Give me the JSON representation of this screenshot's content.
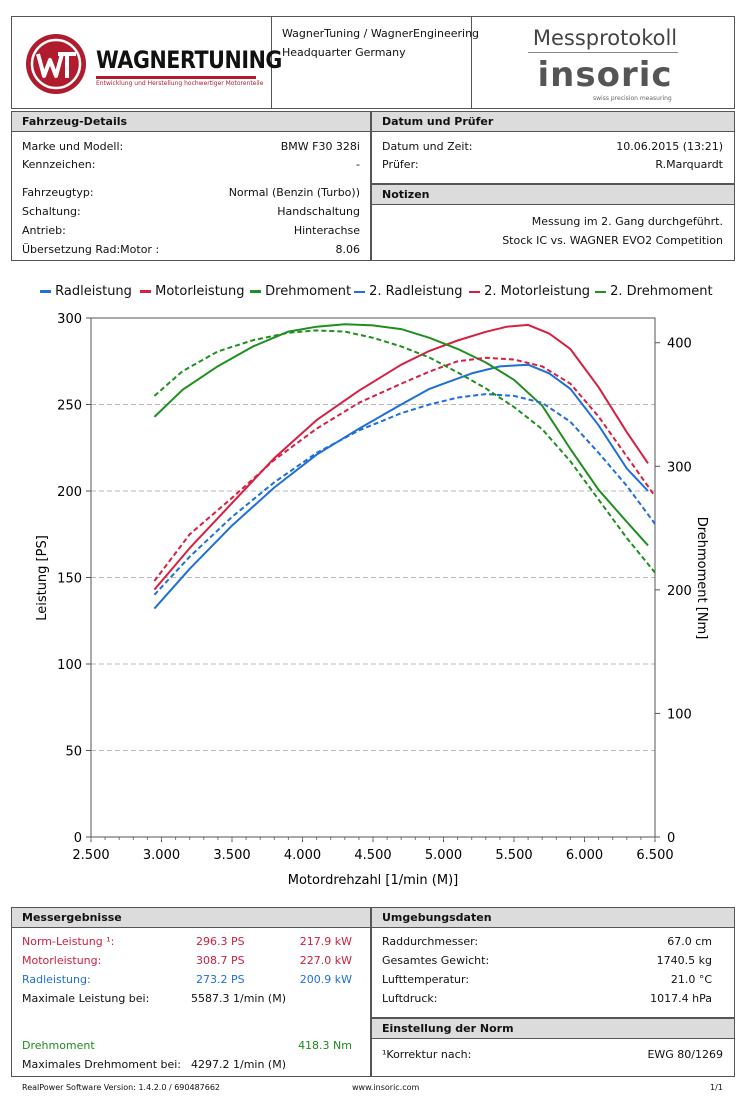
{
  "header": {
    "brand_name": "WAGNERTUNING",
    "brand_tagline": "Entwicklung und Herstellung hochwertiger Motorenteile",
    "company_line1": "WagnerTuning / WagnerEngineering",
    "company_line2": "Headquarter Germany",
    "doc_title": "Messprotokoll",
    "insoric_logo": "insoric",
    "insoric_tagline": "swiss precision measuring"
  },
  "vehicle": {
    "title": "Fahrzeug-Details",
    "rows": [
      {
        "label": "Marke und Modell:",
        "value": "BMW F30 328i"
      },
      {
        "label": "Kennzeichen:",
        "value": "-"
      },
      {
        "label": "Fahrzeugtyp:",
        "value": "Normal (Benzin (Turbo))"
      },
      {
        "label": "Schaltung:",
        "value": "Handschaltung"
      },
      {
        "label": "Antrieb:",
        "value": "Hinterachse"
      },
      {
        "label": "Übersetzung Rad:Motor :",
        "value": "8.06"
      }
    ]
  },
  "date": {
    "title": "Datum und Prüfer",
    "rows": [
      {
        "label": "Datum und Zeit:",
        "value": "10.06.2015 (13:21)"
      },
      {
        "label": "Prüfer:",
        "value": "R.Marquardt"
      }
    ]
  },
  "notes": {
    "title": "Notizen",
    "line1": "Messung im 2. Gang durchgeführt.",
    "line2": "Stock IC vs. WAGNER EVO2 Competition"
  },
  "chart_data": {
    "type": "line",
    "xlabel": "Motordrehzahl [1/min (M)]",
    "ylabel": "Leistung [PS]",
    "y2label": "Drehmoment [Nm]",
    "xlim": [
      2500,
      6500
    ],
    "ylim": [
      0,
      300
    ],
    "y2lim": [
      0,
      420
    ],
    "xticks": [
      "2.500",
      "3.000",
      "3.500",
      "4.000",
      "4.500",
      "5.000",
      "5.500",
      "6.000",
      "6.500"
    ],
    "yticks": [
      "0",
      "50",
      "100",
      "150",
      "200",
      "250",
      "300"
    ],
    "y2ticks": [
      "0",
      "100",
      "200",
      "300",
      "400"
    ],
    "legend_position": "top",
    "colors": {
      "blue": "#1e6fd8",
      "red": "#d62042",
      "green": "#1f8f1f"
    },
    "series": [
      {
        "name": "Radleistung",
        "axis": "left",
        "color": "#1e6fd8",
        "dash": false,
        "x": [
          2950,
          3200,
          3500,
          3800,
          4100,
          4400,
          4700,
          4900,
          5000,
          5200,
          5400,
          5600,
          5750,
          5900,
          6100,
          6300,
          6450
        ],
        "y": [
          132,
          155,
          180,
          202,
          221,
          236,
          250,
          259,
          262,
          268,
          272,
          273,
          268,
          259,
          238,
          213,
          200
        ]
      },
      {
        "name": "Motorleistung",
        "axis": "left",
        "color": "#d62042",
        "dash": false,
        "x": [
          2950,
          3200,
          3500,
          3800,
          4100,
          4400,
          4700,
          4900,
          5100,
          5300,
          5450,
          5600,
          5750,
          5900,
          6100,
          6300,
          6450
        ],
        "y": [
          143,
          167,
          193,
          219,
          241,
          258,
          273,
          281,
          287,
          292,
          295,
          296,
          291,
          282,
          260,
          234,
          216
        ]
      },
      {
        "name": "Drehmoment",
        "axis": "right",
        "color": "#1f8f1f",
        "dash": false,
        "x": [
          2950,
          3150,
          3400,
          3650,
          3900,
          4100,
          4300,
          4500,
          4700,
          4900,
          5100,
          5300,
          5500,
          5700,
          5900,
          6100,
          6300,
          6450
        ],
        "y": [
          340,
          362,
          381,
          397,
          409,
          413,
          415,
          414,
          411,
          404,
          395,
          384,
          370,
          349,
          314,
          281,
          255,
          236
        ]
      },
      {
        "name": "2. Radleistung",
        "axis": "left",
        "color": "#1e6fd8",
        "dash": true,
        "x": [
          2950,
          3200,
          3500,
          3800,
          4100,
          4400,
          4700,
          4900,
          5100,
          5300,
          5500,
          5700,
          5900,
          6100,
          6300,
          6500
        ],
        "y": [
          140,
          162,
          185,
          205,
          222,
          235,
          245,
          250,
          254,
          256,
          255,
          251,
          240,
          222,
          203,
          181
        ]
      },
      {
        "name": "2. Motorleistung",
        "axis": "left",
        "color": "#d62042",
        "dash": true,
        "x": [
          2950,
          3200,
          3500,
          3800,
          4100,
          4400,
          4700,
          4900,
          5100,
          5300,
          5500,
          5700,
          5900,
          6100,
          6300,
          6500
        ],
        "y": [
          148,
          175,
          196,
          218,
          236,
          251,
          262,
          269,
          275,
          277,
          276,
          272,
          262,
          243,
          220,
          197
        ]
      },
      {
        "name": "2. Drehmoment",
        "axis": "right",
        "color": "#1f8f1f",
        "dash": true,
        "x": [
          2950,
          3150,
          3400,
          3650,
          3900,
          4100,
          4300,
          4500,
          4700,
          4900,
          5100,
          5300,
          5500,
          5700,
          5900,
          6100,
          6300,
          6500
        ],
        "y": [
          357,
          377,
          393,
          402,
          408,
          410,
          409,
          404,
          397,
          388,
          376,
          363,
          348,
          330,
          304,
          273,
          242,
          214
        ]
      }
    ]
  },
  "results": {
    "title": "Messergebnisse",
    "norm_label": "Norm-Leistung ¹:",
    "norm_ps": "296.3 PS",
    "norm_kw": "217.9 kW",
    "motor_label": "Motorleistung:",
    "motor_ps": "308.7 PS",
    "motor_kw": "227.0 kW",
    "rad_label": "Radleistung:",
    "rad_ps": "273.2 PS",
    "rad_kw": "200.9 kW",
    "maxp_label": "Maximale Leistung bei:",
    "maxp_value": "5587.3 1/min (M)",
    "dm_label": "Drehmoment",
    "dm_value": "418.3 Nm",
    "maxdm_label": "Maximales Drehmoment bei:",
    "maxdm_value": "4297.2 1/min (M)"
  },
  "environment": {
    "title": "Umgebungsdaten",
    "rows": [
      {
        "label": "Raddurchmesser:",
        "value": "67.0 cm"
      },
      {
        "label": "Gesamtes Gewicht:",
        "value": "1740.5 kg"
      },
      {
        "label": "Lufttemperatur:",
        "value": "21.0 °C"
      },
      {
        "label": "Luftdruck:",
        "value": "1017.4 hPa"
      }
    ]
  },
  "norm": {
    "title": "Einstellung der Norm",
    "label": "¹Korrektur nach:",
    "value": "EWG 80/1269"
  },
  "footer": {
    "software": "RealPower Software Version: 1.4.2.0 / 690487662",
    "website": "www.insoric.com",
    "page": "1/1"
  }
}
